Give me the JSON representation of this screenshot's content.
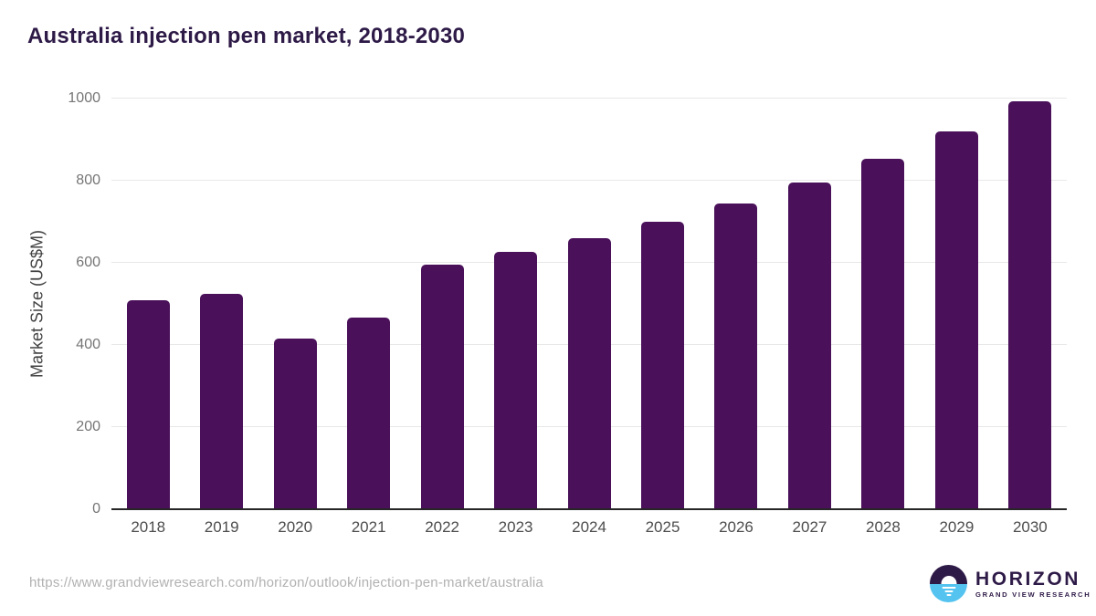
{
  "title": "Australia injection pen market, 2018-2030",
  "source_url": "https://www.grandviewresearch.com/horizon/outlook/injection-pen-market/australia",
  "logo": {
    "name": "HORIZON",
    "subtitle": "GRAND VIEW RESEARCH",
    "icon": "horizon-sunset-icon"
  },
  "colors": {
    "bar": "#4a115a",
    "title": "#2e1a47",
    "tick_labels": "#757575",
    "axis_label": "#424242",
    "x_labels": "#4d4d4d",
    "gridline": "#e8e8e8",
    "baseline": "#262626",
    "url_text": "#b1b1b1",
    "logo_purple": "#2e1a47",
    "logo_blue": "#54c3ef"
  },
  "chart_data": {
    "type": "bar",
    "title": "Australia injection pen market, 2018-2030",
    "categories": [
      "2018",
      "2019",
      "2020",
      "2021",
      "2022",
      "2023",
      "2024",
      "2025",
      "2026",
      "2027",
      "2028",
      "2029",
      "2030"
    ],
    "values": [
      508,
      525,
      415,
      466,
      596,
      627,
      660,
      701,
      745,
      796,
      853,
      919,
      993
    ],
    "xlabel": "",
    "ylabel": "Market Size (US$M)",
    "ylim": [
      0,
      1000
    ],
    "yticks": [
      0,
      200,
      400,
      600,
      800,
      1000
    ],
    "grid": true,
    "legend": false,
    "bar_color": "#4a115a"
  }
}
